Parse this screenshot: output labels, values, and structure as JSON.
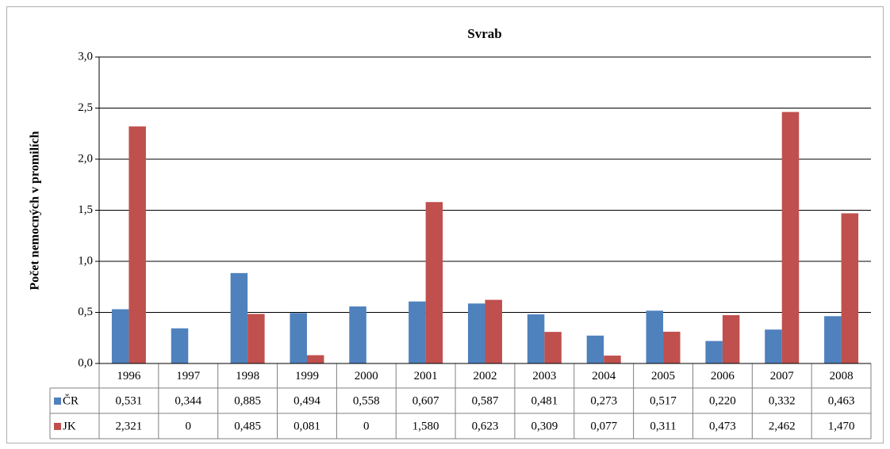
{
  "chart_data": {
    "type": "bar",
    "title": "Svrab",
    "y_label": "Počet nemocných v promilích",
    "categories": [
      "1996",
      "1997",
      "1998",
      "1999",
      "2000",
      "2001",
      "2002",
      "2003",
      "2004",
      "2005",
      "2006",
      "2007",
      "2008"
    ],
    "series": [
      {
        "name": "ČR",
        "color": "#4f81bd",
        "values": [
          0.531,
          0.344,
          0.885,
          0.494,
          0.558,
          0.607,
          0.587,
          0.481,
          0.273,
          0.517,
          0.22,
          0.332,
          0.463
        ],
        "value_labels": [
          "0,531",
          "0,344",
          "0,885",
          "0,494",
          "0,558",
          "0,607",
          "0,587",
          "0,481",
          "0,273",
          "0,517",
          "0,220",
          "0,332",
          "0,463"
        ]
      },
      {
        "name": "JK",
        "color": "#c0504d",
        "values": [
          2.321,
          0,
          0.485,
          0.081,
          0,
          1.58,
          0.623,
          0.309,
          0.077,
          0.311,
          0.473,
          2.462,
          1.47
        ],
        "value_labels": [
          "2,321",
          "0",
          "0,485",
          "0,081",
          "0",
          "1,580",
          "0,623",
          "0,309",
          "0,077",
          "0,311",
          "0,473",
          "2,462",
          "1,470"
        ]
      }
    ],
    "ylim": [
      0,
      3
    ],
    "yticks": [
      {
        "value": 0,
        "label": "0,0"
      },
      {
        "value": 0.5,
        "label": "0,5"
      },
      {
        "value": 1,
        "label": "1,0"
      },
      {
        "value": 1.5,
        "label": "1,5"
      },
      {
        "value": 2,
        "label": "2,0"
      },
      {
        "value": 2.5,
        "label": "2,5"
      },
      {
        "value": 3,
        "label": "3,0"
      }
    ],
    "grid": true
  }
}
